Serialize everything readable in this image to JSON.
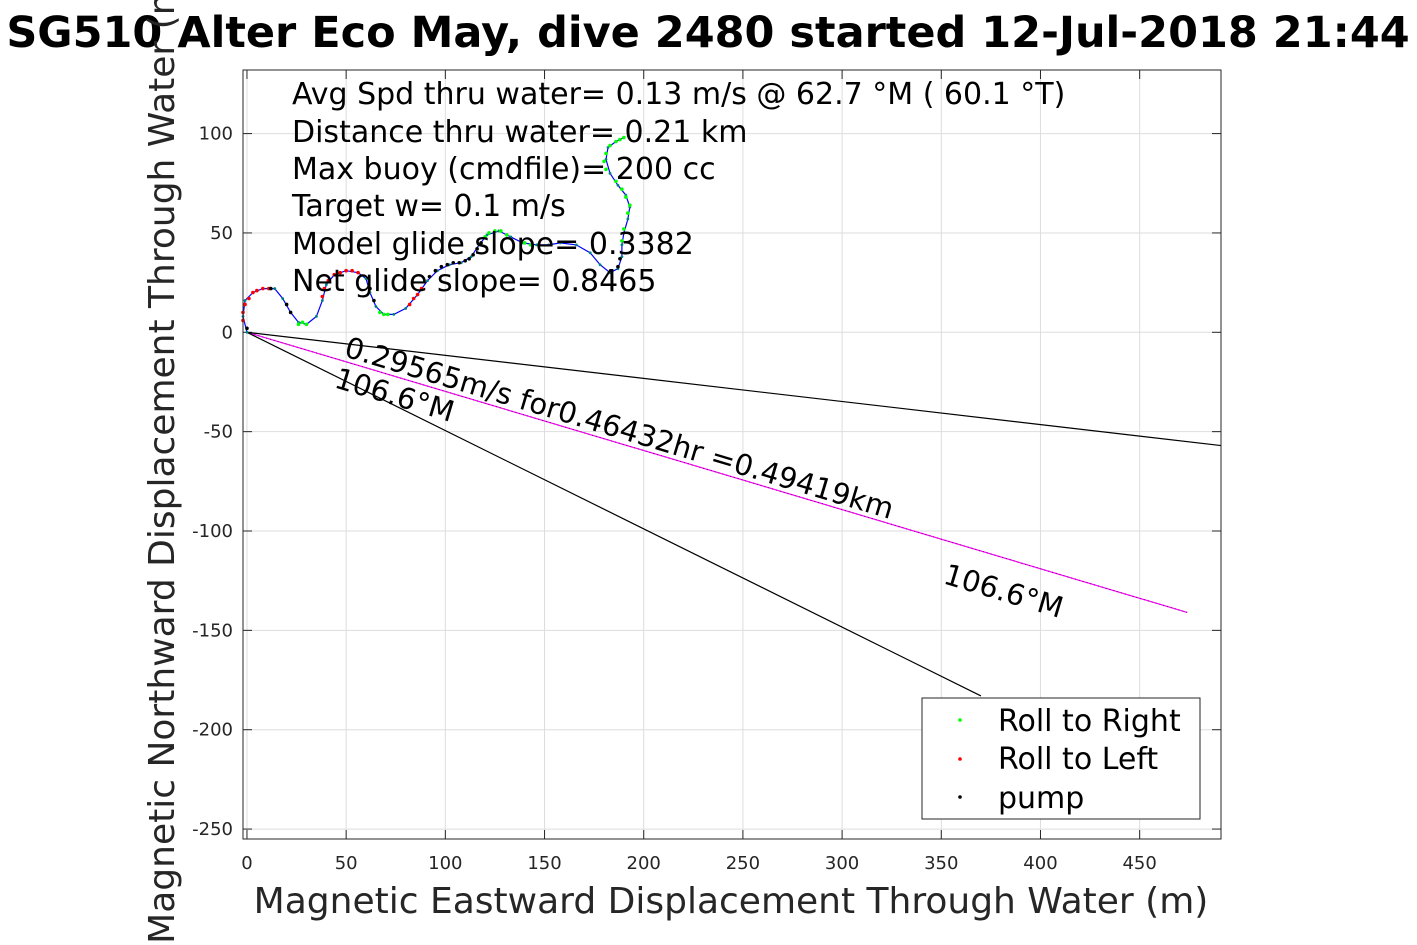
{
  "chart_data": {
    "type": "scatter",
    "title": "SG510 Alter Eco May, dive 2480 started 12-Jul-2018 21:44",
    "xlabel": "Magnetic Eastward Displacement Through Water (m)",
    "ylabel": "Magnetic Northward Displacement Through Water (m)",
    "xlim": [
      -2,
      491
    ],
    "ylim": [
      -255,
      132
    ],
    "grid": true,
    "xticks": [
      0,
      50,
      100,
      150,
      200,
      250,
      300,
      350,
      400,
      450
    ],
    "yticks": [
      100,
      50,
      0,
      -50,
      -100,
      -150,
      -200,
      -250
    ],
    "annotations": [
      "Avg Spd thru water=  0.13 m/s @  62.7 °M ( 60.1 °T)",
      "Distance thru water=  0.21 km",
      "Max buoy (cmdfile)= 200 cc",
      "Target w= 0.1 m/s",
      "Model glide slope= 0.3382",
      "Net glide slope= 0.8465"
    ],
    "track": [
      [
        0,
        0
      ],
      [
        -2,
        8
      ],
      [
        -1,
        16
      ],
      [
        3,
        20
      ],
      [
        8,
        22
      ],
      [
        14,
        22
      ],
      [
        18,
        17
      ],
      [
        22,
        10
      ],
      [
        26,
        5
      ],
      [
        30,
        4
      ],
      [
        35,
        8
      ],
      [
        38,
        16
      ],
      [
        40,
        24
      ],
      [
        44,
        29
      ],
      [
        50,
        31
      ],
      [
        56,
        30
      ],
      [
        60,
        27
      ],
      [
        62,
        20
      ],
      [
        65,
        13
      ],
      [
        69,
        9
      ],
      [
        74,
        9
      ],
      [
        80,
        12
      ],
      [
        86,
        19
      ],
      [
        91,
        26
      ],
      [
        96,
        31
      ],
      [
        102,
        34
      ],
      [
        108,
        35
      ],
      [
        113,
        38
      ],
      [
        117,
        44
      ],
      [
        121,
        49
      ],
      [
        127,
        51
      ],
      [
        133,
        48
      ],
      [
        139,
        45
      ],
      [
        146,
        44
      ],
      [
        152,
        44
      ],
      [
        158,
        45
      ],
      [
        166,
        44
      ],
      [
        173,
        40
      ],
      [
        178,
        34
      ],
      [
        183,
        30
      ],
      [
        187,
        32
      ],
      [
        189,
        38
      ],
      [
        189,
        44
      ],
      [
        190,
        50
      ],
      [
        192,
        57
      ],
      [
        193,
        63
      ],
      [
        191,
        69
      ],
      [
        187,
        74
      ],
      [
        183,
        80
      ],
      [
        181,
        87
      ],
      [
        182,
        93
      ],
      [
        186,
        96
      ],
      [
        190,
        98
      ]
    ],
    "roll_right_points": [
      [
        26,
        4
      ],
      [
        28,
        5
      ],
      [
        30,
        4
      ],
      [
        67,
        10
      ],
      [
        69,
        9
      ],
      [
        71,
        9
      ],
      [
        120,
        48
      ],
      [
        122,
        50
      ],
      [
        125,
        51
      ],
      [
        128,
        51
      ],
      [
        131,
        49
      ],
      [
        140,
        45
      ],
      [
        143,
        44
      ],
      [
        181,
        82
      ],
      [
        180,
        86
      ],
      [
        181,
        90
      ],
      [
        183,
        94
      ],
      [
        186,
        96
      ],
      [
        188,
        97
      ],
      [
        190,
        98
      ],
      [
        192,
        60
      ],
      [
        193,
        64
      ],
      [
        191,
        68
      ],
      [
        189,
        72
      ],
      [
        186,
        76
      ],
      [
        190,
        52
      ],
      [
        189,
        46
      ]
    ],
    "roll_left_points": [
      [
        -2,
        6
      ],
      [
        -2,
        10
      ],
      [
        -1,
        14
      ],
      [
        1,
        17
      ],
      [
        3,
        20
      ],
      [
        5,
        21
      ],
      [
        8,
        22
      ],
      [
        11,
        22
      ],
      [
        38,
        18
      ],
      [
        39,
        22
      ],
      [
        41,
        26
      ],
      [
        44,
        29
      ],
      [
        47,
        30
      ],
      [
        50,
        31
      ],
      [
        53,
        31
      ],
      [
        56,
        30
      ],
      [
        82,
        14
      ],
      [
        84,
        17
      ],
      [
        86,
        19
      ],
      [
        88,
        22
      ]
    ],
    "pump_points": [
      [
        0,
        2
      ],
      [
        12,
        22
      ],
      [
        20,
        14
      ],
      [
        22,
        10
      ],
      [
        62,
        22
      ],
      [
        64,
        16
      ],
      [
        92,
        28
      ],
      [
        95,
        31
      ],
      [
        98,
        33
      ],
      [
        101,
        34
      ],
      [
        104,
        35
      ],
      [
        107,
        35
      ],
      [
        110,
        36
      ],
      [
        112,
        37
      ],
      [
        114,
        39
      ],
      [
        116,
        42
      ],
      [
        118,
        45
      ],
      [
        187,
        33
      ],
      [
        188,
        37
      ]
    ],
    "vectors": [
      {
        "label": "0.29565m/s for0.46432hr =0.49419km",
        "bearing_label": "106.6°M",
        "x": [
          0,
          474
        ],
        "y": [
          0,
          -141
        ],
        "color": "#ff00ff"
      },
      {
        "bearing_label": "106.6°M",
        "x": [
          0,
          370
        ],
        "y": [
          0,
          -183
        ],
        "color": "#000000"
      },
      {
        "x": [
          0,
          491
        ],
        "y": [
          0,
          -57
        ],
        "color": "#000000"
      }
    ],
    "legend": {
      "position": "bottom-right",
      "entries": [
        {
          "name": "Roll to Right",
          "color": "#00ff00"
        },
        {
          "name": "Roll to Left",
          "color": "#ff0000"
        },
        {
          "name": "pump",
          "color": "#000000"
        }
      ]
    },
    "colors": {
      "track": "#0000ff",
      "roll_right": "#00ff00",
      "roll_left": "#ff0000",
      "pump": "#000000",
      "dots": "#008080"
    }
  }
}
